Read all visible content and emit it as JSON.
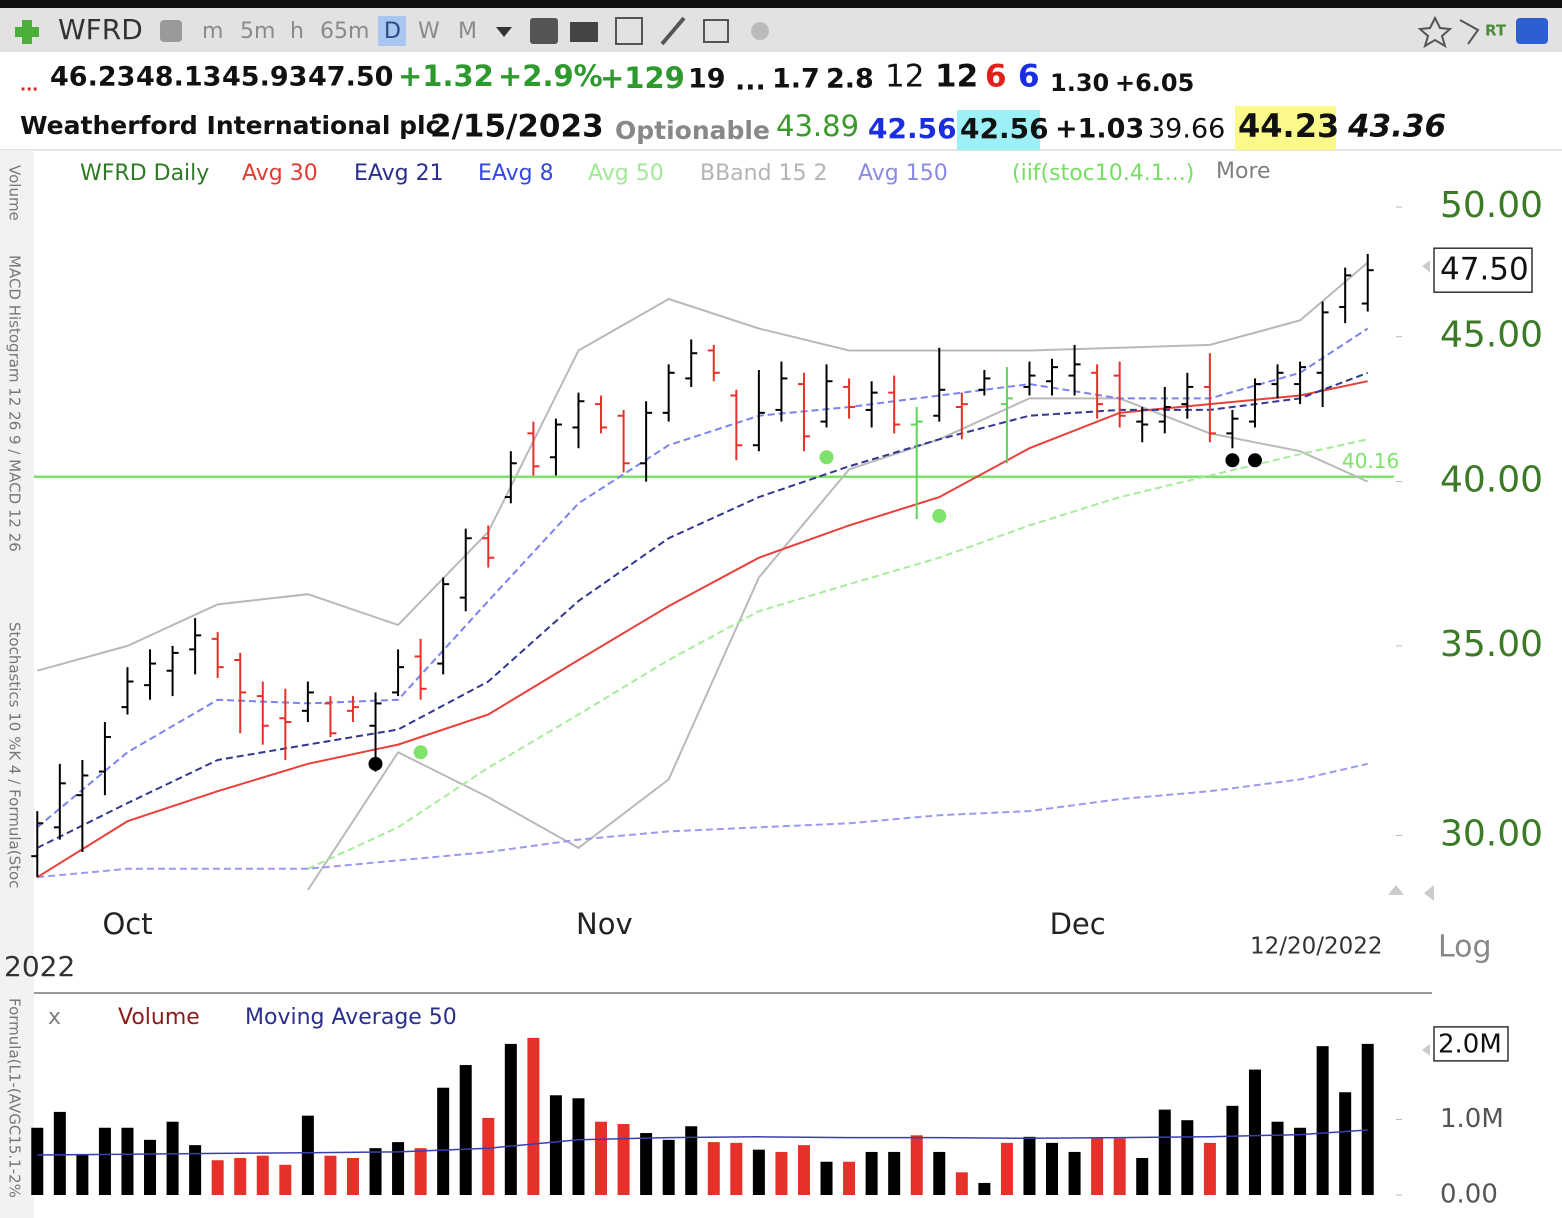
{
  "toolbar": {
    "symbol": "WFRD",
    "intervals": [
      "m",
      "5m",
      "h",
      "65m",
      "D",
      "W",
      "M"
    ],
    "rt": "RT"
  },
  "quote": {
    "row1": [
      "...",
      "46.23",
      "48.13",
      "45.93",
      "47.50",
      "+1.32",
      "+2.9%",
      "+129",
      "19",
      "...",
      "1.7",
      "2.8",
      "12",
      "12",
      "6",
      "6",
      "1.30",
      "+6.05"
    ],
    "row2": [
      "Weatherford International plc",
      "2/15/2023",
      "Optionable",
      "43.89",
      "42.56",
      "42.56",
      "+1.03",
      "39.66",
      "44.23",
      "43.36"
    ]
  },
  "sidebar": [
    "Volume",
    "MACD Histogram 12 26 9 / MACD 12 26",
    "Stochastics 10 %K 4 / Formula(Stoc",
    "Formula(L1-(AVGC15.1-2%"
  ],
  "chart_data": [
    {
      "type": "ohlc",
      "legend": [
        {
          "name": "WFRD Daily",
          "color": "#2f7a25"
        },
        {
          "name": "Avg 30",
          "color": "#e23b30"
        },
        {
          "name": "EAvg 21",
          "color": "#2a2f8c"
        },
        {
          "name": "EAvg 8",
          "color": "#3348e0"
        },
        {
          "name": "Avg 50",
          "color": "#a3e898"
        },
        {
          "name": "BBand 15 2",
          "color": "#b4b4b4"
        },
        {
          "name": "Avg 150",
          "color": "#8a8ae6"
        },
        {
          "name": "(iif(stoc10.4.1...)",
          "color": "#76de62"
        },
        {
          "name": "More",
          "color": "#808080"
        }
      ],
      "categories": [
        null,
        null,
        null,
        null,
        "Oct",
        null,
        null,
        null,
        null,
        null,
        null,
        null,
        null,
        null,
        null,
        null,
        null,
        null,
        null,
        null,
        null,
        null,
        null,
        null,
        null,
        "Nov",
        null,
        null,
        null,
        null,
        null,
        null,
        null,
        null,
        null,
        null,
        null,
        null,
        null,
        null,
        null,
        null,
        null,
        null,
        null,
        null,
        "Dec",
        null,
        null,
        null,
        null,
        null,
        null,
        null,
        null,
        null,
        null,
        null,
        null,
        null
      ],
      "open": [
        29.5,
        30.2,
        31.0,
        31.6,
        33.3,
        33.9,
        34.3,
        34.9,
        35.2,
        34.6,
        33.6,
        33.0,
        33.2,
        33.4,
        33.2,
        32.8,
        33.7,
        34.7,
        34.5,
        36.4,
        38.2,
        39.5,
        41.6,
        40.8,
        41.8,
        42.6,
        42.2,
        40.6,
        42.3,
        43.5,
        44.5,
        42.9,
        41.2,
        42.4,
        43.3,
        42.0,
        43.2,
        42.4,
        43.0,
        41.9,
        42.2,
        42.5,
        43.1,
        42.6,
        43.2,
        43.4,
        43.6,
        43.7,
        43.6,
        42.0,
        42.0,
        42.6,
        43.2,
        41.6,
        42.0,
        43.3,
        43.3,
        43.7,
        46.1,
        46.23
      ],
      "high": [
        30.6,
        31.8,
        31.9,
        32.9,
        34.4,
        34.9,
        35.0,
        35.8,
        35.4,
        34.8,
        34.0,
        33.8,
        34.0,
        33.6,
        33.6,
        33.7,
        34.9,
        35.2,
        37.0,
        38.5,
        38.6,
        41.0,
        42.0,
        42.1,
        43.0,
        42.9,
        42.4,
        42.7,
        44.0,
        44.9,
        44.7,
        43.1,
        43.8,
        44.1,
        43.7,
        44.0,
        43.5,
        43.4,
        43.6,
        42.5,
        44.6,
        43.0,
        43.8,
        43.9,
        44.1,
        44.2,
        44.7,
        44.0,
        44.1,
        42.5,
        43.2,
        43.7,
        44.4,
        42.4,
        43.5,
        44.0,
        44.1,
        46.3,
        47.6,
        48.13
      ],
      "low": [
        29.0,
        29.9,
        29.6,
        31.0,
        33.1,
        33.5,
        33.6,
        34.2,
        34.1,
        32.6,
        32.3,
        31.9,
        32.9,
        32.5,
        32.9,
        31.6,
        33.6,
        33.5,
        34.2,
        36.0,
        37.3,
        39.3,
        40.2,
        40.2,
        41.1,
        41.6,
        40.3,
        40.0,
        42.0,
        43.2,
        43.4,
        40.7,
        41.0,
        42.0,
        41.0,
        41.8,
        42.1,
        41.8,
        41.6,
        38.8,
        42.0,
        41.4,
        42.9,
        40.6,
        42.9,
        42.9,
        42.9,
        42.1,
        41.8,
        41.3,
        41.6,
        42.1,
        41.3,
        41.1,
        41.8,
        42.8,
        42.6,
        42.5,
        45.5,
        45.93
      ],
      "close": [
        30.3,
        31.3,
        31.5,
        32.5,
        34.0,
        34.5,
        34.8,
        35.3,
        34.4,
        33.7,
        32.8,
        32.9,
        33.7,
        32.6,
        33.3,
        33.4,
        34.4,
        33.8,
        36.8,
        38.2,
        37.6,
        40.6,
        40.5,
        41.9,
        42.7,
        41.8,
        40.6,
        42.3,
        43.7,
        44.4,
        43.7,
        41.2,
        42.3,
        43.5,
        41.5,
        43.4,
        42.5,
        43.0,
        41.9,
        42.0,
        43.1,
        42.6,
        43.5,
        42.8,
        43.6,
        43.9,
        44.0,
        42.6,
        42.2,
        41.9,
        42.5,
        43.2,
        41.6,
        42.1,
        43.3,
        43.7,
        43.9,
        45.9,
        47.3,
        47.5
      ],
      "colors": [
        "#000000",
        "#000000",
        "#000000",
        "#000000",
        "#000000",
        "#000000",
        "#000000",
        "#000000",
        "#e8302a",
        "#e8302a",
        "#e8302a",
        "#e8302a",
        "#000000",
        "#e8302a",
        "#e8302a",
        "#000000",
        "#000000",
        "#e8302a",
        "#000000",
        "#000000",
        "#e8302a",
        "#000000",
        "#e8302a",
        "#000000",
        "#000000",
        "#e8302a",
        "#e8302a",
        "#000000",
        "#000000",
        "#000000",
        "#e8302a",
        "#e8302a",
        "#000000",
        "#000000",
        "#e8302a",
        "#000000",
        "#e8302a",
        "#000000",
        "#e8302a",
        "#5fd35a",
        "#000000",
        "#e8302a",
        "#000000",
        "#5fd35a",
        "#000000",
        "#000000",
        "#000000",
        "#e8302a",
        "#e8302a",
        "#000000",
        "#000000",
        "#000000",
        "#e8302a",
        "#000000",
        "#000000",
        "#000000",
        "#000000",
        "#000000",
        "#000000",
        "#000000"
      ],
      "lines": [
        {
          "color": "#b9b9b9",
          "dash": false,
          "x": [
            0,
            4,
            8,
            12,
            16,
            20,
            24,
            28,
            32,
            36,
            40,
            44,
            48,
            52,
            56,
            59
          ],
          "values": [
            34.3,
            35.0,
            36.2,
            36.5,
            35.6,
            38.4,
            44.5,
            46.4,
            45.3,
            44.5,
            44.5,
            44.5,
            44.6,
            44.7,
            45.6,
            47.8
          ]
        },
        {
          "color": "#b9b9b9",
          "dash": false,
          "x": [
            0,
            4,
            8,
            12,
            16,
            20,
            24,
            28,
            32,
            36,
            40,
            44,
            48,
            52,
            56,
            59
          ],
          "values": [
            null,
            null,
            null,
            28.7,
            32.1,
            30.95,
            29.7,
            31.4,
            37.0,
            40.4,
            41.4,
            42.8,
            42.8,
            41.6,
            41.0,
            40.0
          ]
        },
        {
          "color": "#9a9af0",
          "dash": true,
          "x": [
            0,
            4,
            8,
            12,
            16,
            20,
            24,
            28,
            32,
            36,
            40,
            44,
            48,
            52,
            56,
            59
          ],
          "values": [
            29.0,
            29.2,
            29.2,
            29.2,
            29.4,
            29.6,
            29.9,
            30.1,
            30.2,
            30.3,
            30.5,
            30.6,
            30.9,
            31.1,
            31.4,
            31.8
          ]
        },
        {
          "color": "#a6ec9a",
          "dash": true,
          "x": [
            0,
            4,
            8,
            12,
            16,
            20,
            24,
            28,
            32,
            36,
            40,
            44,
            48,
            52,
            56,
            59
          ],
          "values": [
            null,
            null,
            null,
            29.2,
            30.2,
            31.7,
            33.1,
            34.6,
            36.0,
            36.8,
            37.6,
            38.6,
            39.5,
            40.2,
            40.9,
            41.4
          ]
        },
        {
          "color": "#e8403a",
          "dash": false,
          "x": [
            0,
            4,
            8,
            12,
            16,
            20,
            24,
            28,
            32,
            36,
            40,
            44,
            48,
            52,
            56,
            59
          ],
          "values": [
            29.0,
            30.35,
            31.1,
            31.8,
            32.3,
            33.1,
            34.6,
            36.15,
            37.6,
            38.6,
            39.5,
            41.1,
            42.3,
            42.6,
            42.9,
            43.4
          ]
        },
        {
          "color": "#33378f",
          "dash": true,
          "x": [
            0,
            4,
            8,
            12,
            16,
            20,
            24,
            28,
            32,
            36,
            40,
            44,
            48,
            52,
            56,
            59
          ],
          "values": [
            29.7,
            30.8,
            31.9,
            32.3,
            32.7,
            34.0,
            36.3,
            38.2,
            39.5,
            40.5,
            41.4,
            42.2,
            42.4,
            42.4,
            42.8,
            43.7
          ]
        },
        {
          "color": "#7b83f0",
          "dash": true,
          "x": [
            0,
            4,
            8,
            12,
            16,
            20,
            24,
            28,
            32,
            36,
            40,
            44,
            48,
            52,
            56,
            59
          ],
          "values": [
            30.2,
            32.1,
            33.5,
            33.4,
            33.5,
            36.3,
            39.3,
            41.2,
            42.2,
            42.5,
            42.9,
            43.3,
            42.8,
            42.8,
            43.7,
            45.3
          ]
        }
      ],
      "hline": {
        "value": 40.16,
        "label": "40.16",
        "color": "#7de36a"
      },
      "markers": {
        "x": [
          15,
          17,
          35,
          40,
          53,
          54
        ],
        "values": [
          31.8,
          32.1,
          40.8,
          38.9,
          40.7,
          40.7
        ],
        "colors": [
          "#000000",
          "#7de36a",
          "#7de36a",
          "#7de36a",
          "#000000",
          "#000000"
        ]
      },
      "ylim": [
        28.7,
        50.7
      ],
      "log_scale": true,
      "yticks": [
        {
          "value": 30,
          "label": "30.00"
        },
        {
          "value": 35,
          "label": "35.00"
        },
        {
          "value": 40,
          "label": "40.00"
        },
        {
          "value": 45,
          "label": "45.00"
        },
        {
          "value": 50,
          "label": "50.00"
        }
      ],
      "last_label": {
        "value": 47.5,
        "label": "47.50"
      },
      "date_label": "12/20/2022",
      "scale_label": "Log",
      "year_label": "2022"
    },
    {
      "type": "bar",
      "legend": [
        {
          "name": "x",
          "color": "#808080"
        },
        {
          "name": "Volume",
          "color": "#8b1a1a"
        },
        {
          "name": "Moving Average 50",
          "color": "#2a2f8c"
        }
      ],
      "values": [
        890000,
        1100000,
        530000,
        890000,
        890000,
        730000,
        970000,
        660000,
        460000,
        490000,
        520000,
        400000,
        1050000,
        520000,
        490000,
        620000,
        700000,
        620000,
        1420000,
        1720000,
        1020000,
        2000000,
        2080000,
        1320000,
        1280000,
        970000,
        940000,
        820000,
        730000,
        910000,
        700000,
        690000,
        600000,
        570000,
        660000,
        440000,
        440000,
        570000,
        570000,
        790000,
        570000,
        300000,
        160000,
        690000,
        770000,
        690000,
        570000,
        750000,
        750000,
        490000,
        1130000,
        990000,
        690000,
        1180000,
        1660000,
        970000,
        890000,
        1970000,
        1360000,
        2000000
      ],
      "colors": [
        "#000000",
        "#000000",
        "#000000",
        "#000000",
        "#000000",
        "#000000",
        "#000000",
        "#000000",
        "#e8302a",
        "#e8302a",
        "#e8302a",
        "#e8302a",
        "#000000",
        "#e8302a",
        "#e8302a",
        "#000000",
        "#000000",
        "#e8302a",
        "#000000",
        "#000000",
        "#e8302a",
        "#000000",
        "#e8302a",
        "#000000",
        "#000000",
        "#e8302a",
        "#e8302a",
        "#000000",
        "#000000",
        "#000000",
        "#e8302a",
        "#e8302a",
        "#000000",
        "#e8302a",
        "#e8302a",
        "#000000",
        "#e8302a",
        "#000000",
        "#000000",
        "#e8302a",
        "#000000",
        "#e8302a",
        "#000000",
        "#e8302a",
        "#000000",
        "#000000",
        "#000000",
        "#e8302a",
        "#e8302a",
        "#000000",
        "#000000",
        "#000000",
        "#e8302a",
        "#000000",
        "#000000",
        "#000000",
        "#000000",
        "#000000",
        "#000000",
        "#000000"
      ],
      "ma": {
        "color": "#3a3fb0",
        "x": [
          0,
          4,
          8,
          12,
          16,
          20,
          24,
          28,
          32,
          36,
          40,
          44,
          48,
          52,
          56,
          59
        ],
        "values": [
          530000,
          540000,
          550000,
          560000,
          570000,
          620000,
          730000,
          760000,
          770000,
          760000,
          760000,
          750000,
          760000,
          770000,
          800000,
          860000
        ]
      },
      "ylim": [
        0,
        2250000
      ],
      "yticks": [
        {
          "value": 0,
          "label": "0.00"
        },
        {
          "value": 1000000,
          "label": "1.0M"
        }
      ],
      "last_label": {
        "value": 2000000,
        "label": "2.0M"
      }
    }
  ]
}
